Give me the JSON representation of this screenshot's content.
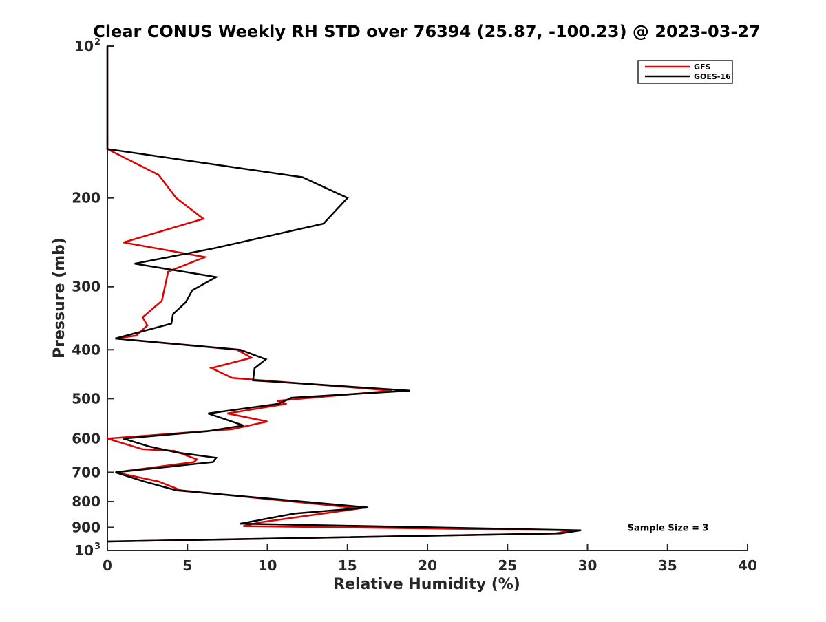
{
  "chart_data": {
    "type": "line",
    "title": "Clear CONUS Weekly RH STD over 76394 (25.87, -100.23) @ 2023-03-27",
    "xlabel": "Relative Humidity (%)",
    "ylabel": "Pressure (mb)",
    "xlim": [
      0,
      40
    ],
    "ylim": [
      100,
      1000
    ],
    "y_scale": "log",
    "y_reversed": true,
    "x_ticks": [
      0,
      5,
      10,
      15,
      20,
      25,
      30,
      35,
      40
    ],
    "x_tick_labels": [
      "0",
      "5",
      "10",
      "15",
      "20",
      "25",
      "30",
      "35",
      "40"
    ],
    "y_ticks": [
      100,
      200,
      300,
      400,
      500,
      600,
      700,
      800,
      900,
      1000
    ],
    "y_tick_labels": [
      {
        "base": "10",
        "exp": "2"
      },
      {
        "base": "200",
        "exp": ""
      },
      {
        "base": "300",
        "exp": ""
      },
      {
        "base": "400",
        "exp": ""
      },
      {
        "base": "500",
        "exp": ""
      },
      {
        "base": "600",
        "exp": ""
      },
      {
        "base": "700",
        "exp": ""
      },
      {
        "base": "800",
        "exp": ""
      },
      {
        "base": "900",
        "exp": ""
      },
      {
        "base": "10",
        "exp": "3"
      }
    ],
    "grid": false,
    "legend_position": "top-right",
    "series": [
      {
        "name": "GFS",
        "color": "#e00000",
        "x": [
          0,
          0,
          0,
          0,
          3.2,
          4.3,
          6.0,
          1.0,
          6.1,
          3.8,
          3.4,
          2.2,
          2.5,
          1.8,
          0.5,
          8.1,
          9.0,
          6.5,
          7.8,
          17.8,
          10.6,
          11.2,
          7.5,
          10.0,
          7.8,
          0.0,
          2.2,
          4.2,
          5.6,
          5.4,
          0.5,
          3.2,
          4.6,
          15.8,
          9.5,
          8.5,
          29.0,
          28.0,
          0
        ],
        "y": [
          100,
          120,
          140,
          160,
          180,
          200,
          220,
          245,
          262,
          280,
          320,
          345,
          358,
          375,
          380,
          400,
          415,
          435,
          455,
          482,
          505,
          512,
          535,
          555,
          575,
          600,
          630,
          635,
          660,
          668,
          700,
          730,
          760,
          825,
          880,
          895,
          912,
          925,
          960
        ]
      },
      {
        "name": "GOES-16",
        "color": "#000000",
        "x": [
          0,
          0,
          0,
          0,
          12.2,
          15.0,
          13.5,
          6.6,
          1.7,
          6.8,
          5.3,
          4.9,
          4.1,
          4.0,
          0.5,
          8.3,
          9.9,
          9.2,
          9.1,
          18.9,
          11.5,
          10.7,
          6.3,
          8.5,
          6.3,
          1.0,
          2.6,
          4.4,
          6.8,
          6.6,
          0.5,
          2.3,
          4.3,
          16.3,
          11.7,
          8.3,
          29.6,
          28.3,
          0
        ],
        "y": [
          100,
          120,
          140,
          160,
          182,
          200,
          225,
          252,
          270,
          287,
          305,
          322,
          340,
          355,
          380,
          400,
          418,
          435,
          460,
          482,
          498,
          512,
          535,
          565,
          580,
          600,
          622,
          640,
          655,
          668,
          700,
          730,
          760,
          822,
          845,
          885,
          912,
          925,
          960
        ]
      }
    ],
    "annotations": [
      {
        "text": "Sample Size = 3",
        "x": 32.5,
        "y": 900
      }
    ]
  },
  "colors": {
    "axis": "#262626",
    "gfs": "#e00000",
    "goes": "#000000",
    "background": "#ffffff"
  }
}
